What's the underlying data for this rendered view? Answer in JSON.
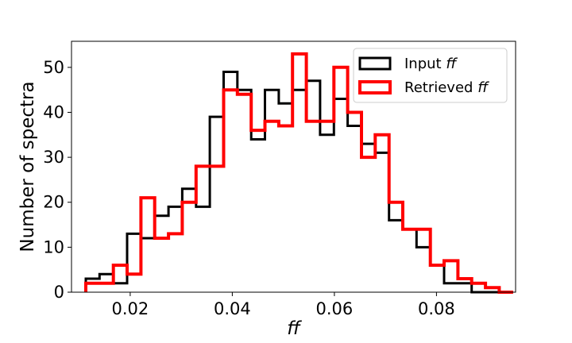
{
  "chart_data": {
    "type": "histogram",
    "xlabel": "ff",
    "ylabel": "Number of spectra",
    "xlim": [
      0.0085,
      0.0955
    ],
    "ylim": [
      0,
      55.8
    ],
    "x_ticks": [
      0.02,
      0.04,
      0.06,
      0.08
    ],
    "x_tick_labels": [
      "0.02",
      "0.04",
      "0.06",
      "0.08"
    ],
    "y_ticks": [
      0,
      10,
      20,
      30,
      40,
      50
    ],
    "y_tick_labels": [
      "0",
      "10",
      "20",
      "30",
      "40",
      "50"
    ],
    "bin_edges": [
      0.0113,
      0.014,
      0.0167,
      0.0194,
      0.0221,
      0.0248,
      0.0275,
      0.0302,
      0.0329,
      0.0356,
      0.0383,
      0.041,
      0.0437,
      0.0464,
      0.0491,
      0.0518,
      0.0545,
      0.0572,
      0.0599,
      0.0626,
      0.0653,
      0.068,
      0.0707,
      0.0734,
      0.0761,
      0.0788,
      0.0815,
      0.0842,
      0.0869,
      0.0896,
      0.0923,
      0.095
    ],
    "series": [
      {
        "name": "Input ff",
        "color": "#000000",
        "values": [
          3,
          4,
          2,
          13,
          12,
          17,
          19,
          23,
          19,
          39,
          49,
          45,
          34,
          45,
          42,
          45,
          47,
          35,
          43,
          37,
          33,
          31,
          16,
          14,
          10,
          6,
          2,
          2,
          0,
          0,
          0
        ]
      },
      {
        "name": "Retrieved ff",
        "color": "#ff0000",
        "values": [
          2,
          2,
          6,
          4,
          21,
          12,
          13,
          20,
          28,
          28,
          45,
          44,
          36,
          38,
          37,
          53,
          38,
          38,
          50,
          40,
          30,
          35,
          20,
          14,
          14,
          6,
          7,
          3,
          2,
          1,
          0
        ]
      }
    ],
    "legend": {
      "position": "top-right",
      "entries": [
        {
          "prefix": "Input ",
          "italic": "ff"
        },
        {
          "prefix": "Retrieved ",
          "italic": "ff"
        }
      ]
    },
    "grid": false
  }
}
